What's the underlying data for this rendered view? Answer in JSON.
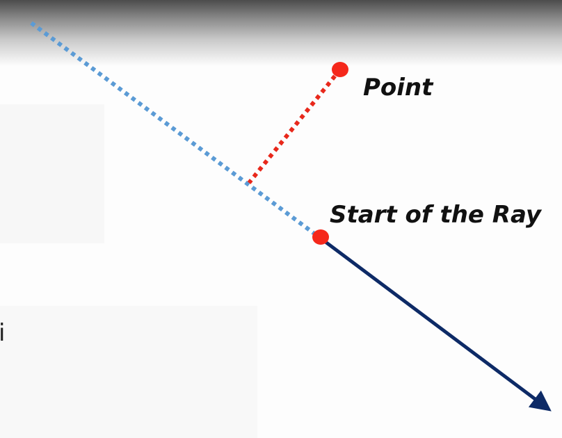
{
  "labels": {
    "point": "Point",
    "ray_start": "Start of the Ray",
    "edge_glyph": "i"
  },
  "colors": {
    "backward_line": "#5b9bd5",
    "perpendicular": "#e8281b",
    "point_marker": "#f5281b",
    "ray": "#0d2a66",
    "text": "#111111"
  },
  "elements": {
    "ray_line": "solid arrow from ray start",
    "backward_extension": "dotted line behind ray start",
    "projection": "dotted line from point to ray extension",
    "markers": [
      "point-dot",
      "ray-start-dot"
    ]
  }
}
